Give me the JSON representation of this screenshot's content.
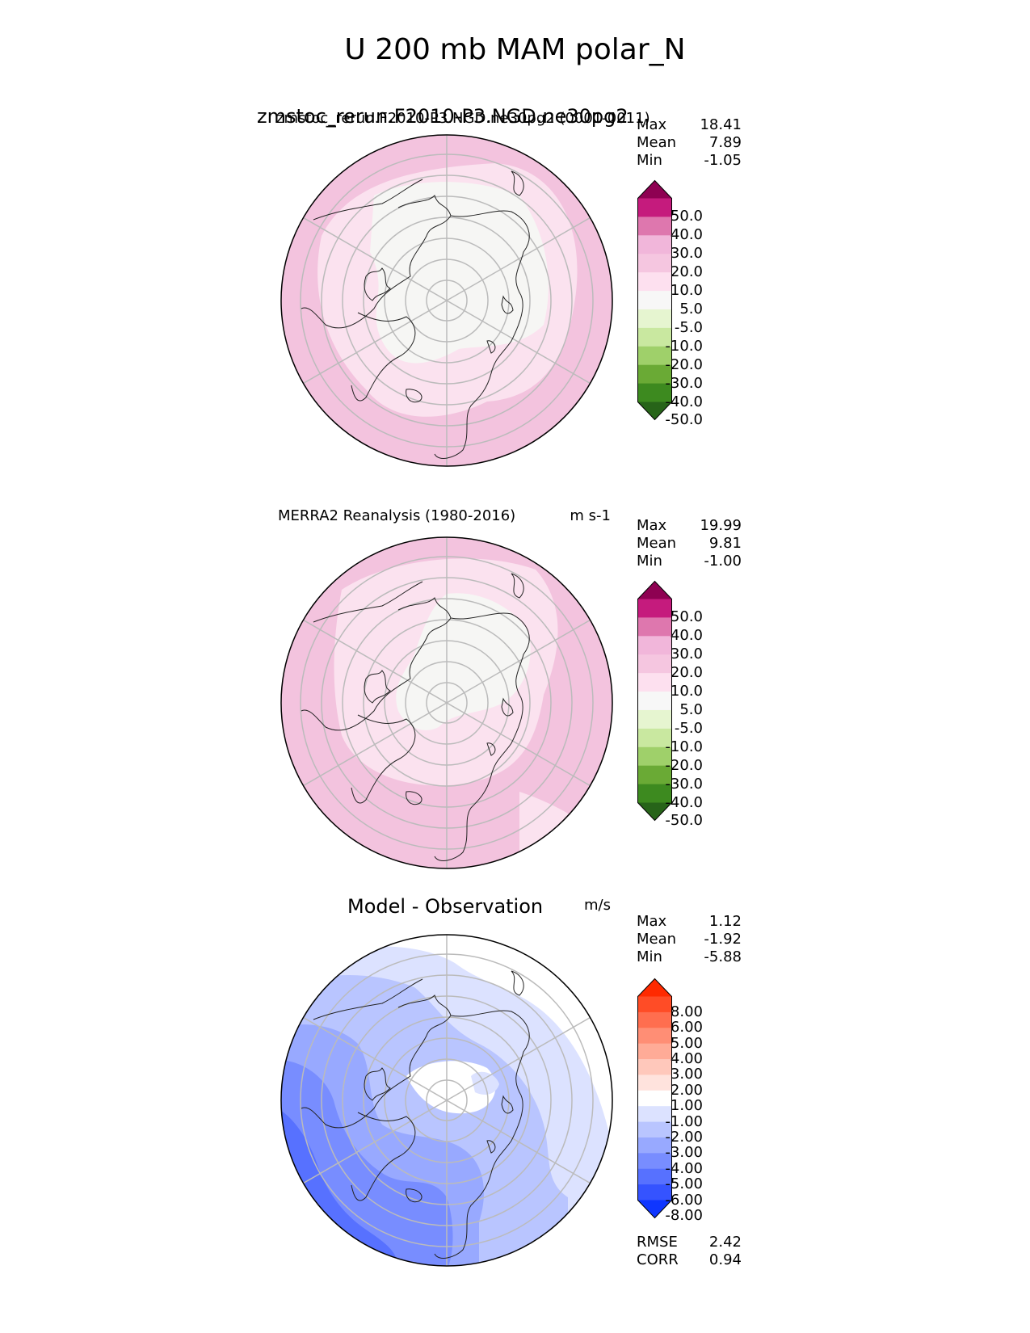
{
  "figure": {
    "title": "U 200 mb MAM polar_N"
  },
  "panels": [
    {
      "id": "test",
      "title_overlay_large": "zmstoc_rerun.F2010-P3.NGD.ne30pg2",
      "title_overlay_small": "zmstoc_rerun.F2010-P3.NGD.ne30pg2 (0001-0011)",
      "stats": [
        {
          "label": "Max",
          "value": "18.41"
        },
        {
          "label": "Mean",
          "value": "7.89"
        },
        {
          "label": "Min",
          "value": "-1.05"
        }
      ],
      "colorbar": {
        "ticks": [
          "50.0",
          "40.0",
          "30.0",
          "20.0",
          "10.0",
          "5.0",
          "-5.0",
          "-10.0",
          "-20.0",
          "-30.0",
          "-40.0",
          "-50.0"
        ],
        "colors": [
          "#8e0152",
          "#c51b7d",
          "#de77ae",
          "#f1b6da",
          "#f5c6e0",
          "#fde0ef",
          "#f7f7f7",
          "#e6f5d0",
          "#c9e8a0",
          "#9fd06a",
          "#6aaa35",
          "#3d8a1f",
          "#276419"
        ]
      }
    },
    {
      "id": "reference",
      "title_left": "MERRA2 Reanalysis (1980-2016)",
      "units": "m s-1",
      "stats": [
        {
          "label": "Max",
          "value": "19.99"
        },
        {
          "label": "Mean",
          "value": "9.81"
        },
        {
          "label": "Min",
          "value": "-1.00"
        }
      ],
      "colorbar": {
        "ticks": [
          "50.0",
          "40.0",
          "30.0",
          "20.0",
          "10.0",
          "5.0",
          "-5.0",
          "-10.0",
          "-20.0",
          "-30.0",
          "-40.0",
          "-50.0"
        ],
        "colors": [
          "#8e0152",
          "#c51b7d",
          "#de77ae",
          "#f1b6da",
          "#f5c6e0",
          "#fde0ef",
          "#f7f7f7",
          "#e6f5d0",
          "#c9e8a0",
          "#9fd06a",
          "#6aaa35",
          "#3d8a1f",
          "#276419"
        ]
      }
    },
    {
      "id": "difference",
      "title_center": "Model - Observation",
      "units": "m/s",
      "stats": [
        {
          "label": "Max",
          "value": "1.12"
        },
        {
          "label": "Mean",
          "value": "-1.92"
        },
        {
          "label": "Min",
          "value": "-5.88"
        }
      ],
      "colorbar": {
        "ticks": [
          "8.00",
          "6.00",
          "5.00",
          "4.00",
          "3.00",
          "2.00",
          "1.00",
          "-1.00",
          "-2.00",
          "-3.00",
          "-4.00",
          "-5.00",
          "-6.00",
          "-8.00"
        ],
        "colors": [
          "#ff2a00",
          "#ff4c26",
          "#ff6e4f",
          "#ff8e75",
          "#ffab97",
          "#ffc8bb",
          "#ffe3dd",
          "#ffffff",
          "#dce2ff",
          "#b9c5ff",
          "#98a9ff",
          "#788dff",
          "#5771ff",
          "#3553ff",
          "#0f36ff"
        ]
      },
      "metrics": [
        {
          "label": "RMSE",
          "value": "2.42"
        },
        {
          "label": "CORR",
          "value": "0.94"
        }
      ]
    }
  ]
}
